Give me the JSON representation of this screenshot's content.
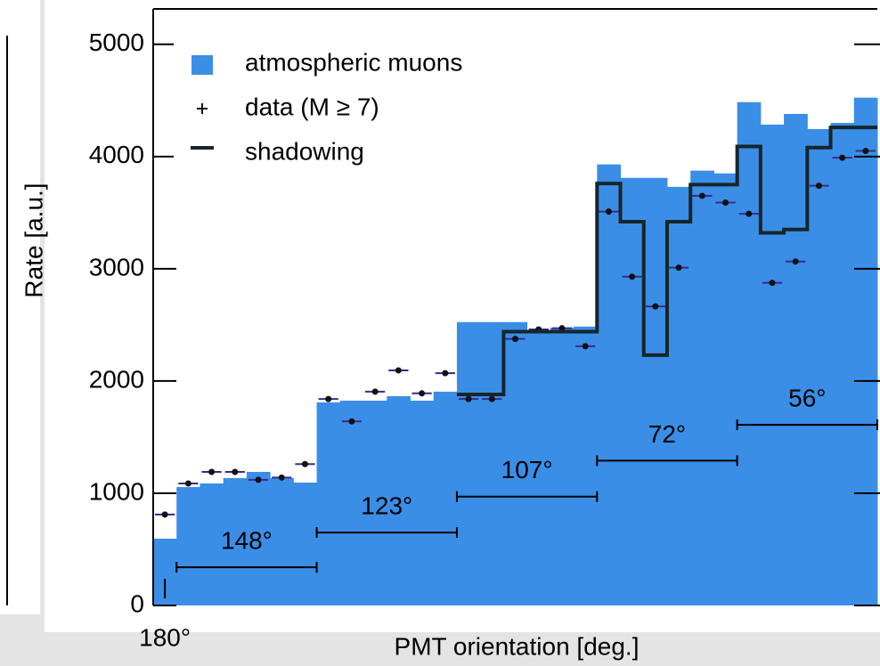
{
  "chart_data": {
    "type": "histogram",
    "y_label": "Rate [a.u.]",
    "x_label": "PMT orientation [deg.]",
    "bins": [
      0,
      1,
      2,
      3,
      4,
      5,
      6,
      7,
      8,
      9,
      10,
      11,
      12,
      13,
      14,
      15,
      16,
      17,
      18,
      19,
      20,
      21,
      22,
      23,
      24,
      25,
      26,
      27,
      28,
      29,
      30,
      31
    ],
    "xlim": [
      0,
      31
    ],
    "ylim": [
      0,
      5300
    ],
    "yticks": [
      0,
      1000,
      2000,
      3000,
      4000,
      5000
    ],
    "series": [
      {
        "name": "atmospheric muons",
        "color": "#3a8ee6",
        "style": "fill",
        "values": [
          595,
          1055,
          1087,
          1135,
          1190,
          1135,
          1095,
          1810,
          1825,
          1825,
          1865,
          1825,
          1905,
          2525,
          2525,
          2525,
          2445,
          2475,
          2485,
          3930,
          3810,
          3810,
          3730,
          3875,
          3850,
          4485,
          4285,
          4380,
          4245,
          4300,
          4525
        ]
      },
      {
        "name": "data (M ≥ 7)",
        "color": "#111111",
        "style": "points",
        "values": [
          810,
          1087,
          1190,
          1190,
          1120,
          1140,
          1260,
          1840,
          1640,
          1905,
          2095,
          1890,
          2070,
          1840,
          1840,
          2375,
          2460,
          2470,
          2310,
          3510,
          2930,
          2665,
          3010,
          3650,
          3590,
          3490,
          2875,
          3065,
          3740,
          3990,
          4050
        ]
      },
      {
        "name": "shadowing",
        "color": "#16262a",
        "style": "step",
        "values": [
          null,
          null,
          null,
          null,
          null,
          null,
          null,
          null,
          null,
          null,
          null,
          null,
          null,
          1880,
          1880,
          2440,
          2440,
          2440,
          2440,
          3760,
          3420,
          2230,
          3420,
          3750,
          3750,
          4090,
          3320,
          3350,
          4080,
          4260,
          4260
        ]
      }
    ],
    "annotations": [
      "180°",
      "148°",
      "123°",
      "107°",
      "72°",
      "56°"
    ]
  }
}
